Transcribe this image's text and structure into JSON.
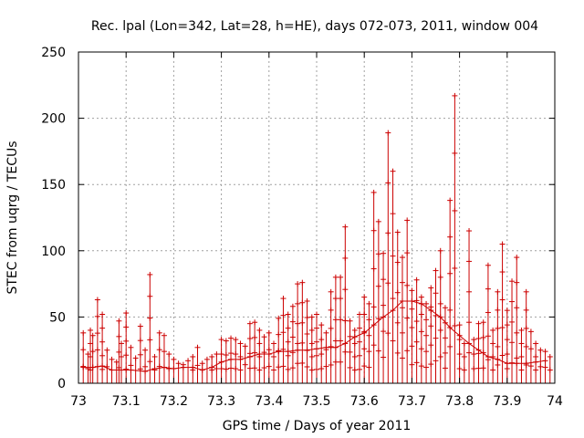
{
  "chart_data": {
    "type": "scatter",
    "title": "Rec. lpal (Lon=342, Lat=28, h=HE), days 072-073, 2011, window 004",
    "xlabel": "GPS time / Days of year 2011",
    "ylabel": "STEC from uqrg / TECUs",
    "xlim": [
      73,
      74
    ],
    "ylim": [
      0,
      250
    ],
    "xticks": [
      73,
      73.1,
      73.2,
      73.3,
      73.4,
      73.5,
      73.6,
      73.7,
      73.8,
      73.9,
      74
    ],
    "xtick_labels": [
      "73",
      "73.1",
      "73.2",
      "73.3",
      "73.4",
      "73.5",
      "73.6",
      "73.7",
      "73.8",
      "73.9",
      "74"
    ],
    "yticks": [
      0,
      50,
      100,
      150,
      200,
      250
    ],
    "ytick_labels": [
      "0",
      "50",
      "100",
      "150",
      "200",
      "250"
    ],
    "grid": true,
    "series": [
      {
        "name": "STEC",
        "style": "impulses with plus markers",
        "color": "#cc0000",
        "x": [
          73.01,
          73.02,
          73.025,
          73.03,
          73.04,
          73.05,
          73.06,
          73.07,
          73.08,
          73.085,
          73.09,
          73.1,
          73.11,
          73.12,
          73.13,
          73.14,
          73.15,
          73.16,
          73.17,
          73.18,
          73.19,
          73.2,
          73.21,
          73.22,
          73.23,
          73.24,
          73.25,
          73.26,
          73.27,
          73.28,
          73.29,
          73.3,
          73.31,
          73.32,
          73.33,
          73.34,
          73.35,
          73.36,
          73.37,
          73.38,
          73.39,
          73.4,
          73.41,
          73.42,
          73.43,
          73.44,
          73.45,
          73.46,
          73.47,
          73.48,
          73.49,
          73.5,
          73.51,
          73.52,
          73.53,
          73.54,
          73.55,
          73.56,
          73.57,
          73.58,
          73.59,
          73.6,
          73.61,
          73.62,
          73.63,
          73.64,
          73.65,
          73.66,
          73.67,
          73.68,
          73.69,
          73.7,
          73.71,
          73.72,
          73.73,
          73.74,
          73.75,
          73.76,
          73.77,
          73.78,
          73.79,
          73.8,
          73.81,
          73.82,
          73.83,
          73.84,
          73.85,
          73.86,
          73.87,
          73.88,
          73.89,
          73.9,
          73.91,
          73.92,
          73.93,
          73.94,
          73.95,
          73.96,
          73.97,
          73.98,
          73.99
        ],
        "y": [
          38,
          22,
          40,
          36,
          63,
          52,
          25,
          18,
          16,
          47,
          30,
          53,
          27,
          19,
          43,
          25,
          82,
          20,
          38,
          36,
          22,
          18,
          15,
          14,
          17,
          20,
          27,
          15,
          18,
          20,
          22,
          33,
          32,
          34,
          33,
          30,
          28,
          45,
          46,
          40,
          35,
          38,
          30,
          49,
          64,
          52,
          58,
          75,
          76,
          62,
          50,
          52,
          44,
          38,
          69,
          80,
          80,
          118,
          47,
          40,
          52,
          65,
          60,
          144,
          122,
          98,
          189,
          160,
          114,
          95,
          123,
          70,
          78,
          65,
          60,
          72,
          85,
          100,
          57,
          138,
          217,
          44,
          30,
          115,
          33,
          45,
          46,
          89,
          40,
          69,
          105,
          55,
          77,
          95,
          40,
          69,
          39,
          30,
          25,
          24,
          20
        ],
        "extra_points": [
          [
            73.01,
            12
          ],
          [
            73.03,
            12
          ],
          [
            73.05,
            13
          ],
          [
            73.07,
            10
          ],
          [
            73.09,
            10
          ],
          [
            73.11,
            10
          ],
          [
            73.14,
            9
          ],
          [
            73.16,
            11
          ],
          [
            73.18,
            12
          ],
          [
            73.2,
            11
          ],
          [
            73.22,
            12
          ],
          [
            73.24,
            12
          ],
          [
            73.26,
            10
          ],
          [
            73.28,
            12
          ],
          [
            73.3,
            16
          ],
          [
            73.32,
            18
          ],
          [
            73.34,
            18
          ],
          [
            73.36,
            20
          ],
          [
            73.38,
            22
          ],
          [
            73.4,
            22
          ],
          [
            73.42,
            24
          ],
          [
            73.44,
            24
          ],
          [
            73.46,
            25
          ],
          [
            73.48,
            25
          ],
          [
            73.5,
            26
          ],
          [
            73.52,
            27
          ],
          [
            73.54,
            27
          ],
          [
            73.56,
            30
          ],
          [
            73.58,
            35
          ],
          [
            73.6,
            38
          ],
          [
            73.62,
            44
          ],
          [
            73.64,
            50
          ],
          [
            73.66,
            55
          ],
          [
            73.68,
            62
          ],
          [
            73.7,
            62
          ],
          [
            73.72,
            60
          ],
          [
            73.74,
            55
          ],
          [
            73.76,
            50
          ],
          [
            73.78,
            42
          ],
          [
            73.8,
            36
          ],
          [
            73.82,
            30
          ],
          [
            73.84,
            25
          ],
          [
            73.86,
            20
          ],
          [
            73.88,
            18
          ],
          [
            73.9,
            15
          ],
          [
            73.92,
            15
          ],
          [
            73.94,
            15
          ],
          [
            73.96,
            16
          ],
          [
            73.98,
            17
          ]
        ]
      }
    ]
  }
}
